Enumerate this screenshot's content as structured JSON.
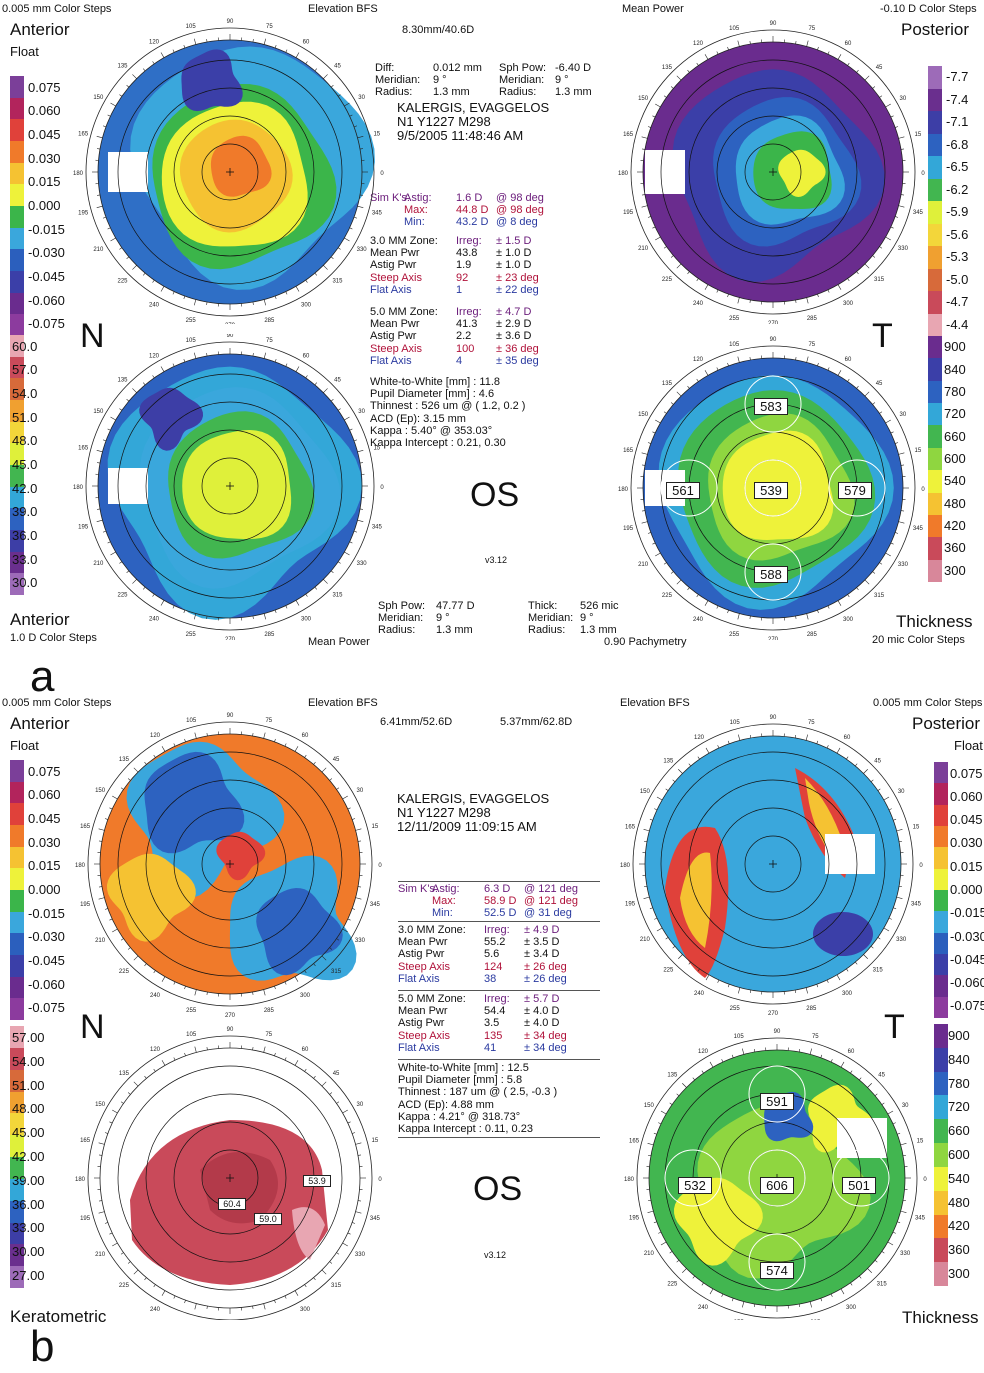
{
  "panel_a": {
    "letter": "a",
    "top_left": {
      "steps": "0.005 mm Color Steps",
      "title": "Anterior",
      "sub": "Float",
      "center": "Elevation BFS"
    },
    "top_center_value": "8.30mm/40.6D",
    "top_right": {
      "center": "Mean Power",
      "steps": "-0.10 D Color Steps",
      "title": "Posterior"
    },
    "bottom_left": {
      "title": "Anterior",
      "steps": "1.0 D Color Steps",
      "center": "Mean Power"
    },
    "bottom_right": {
      "center": "0.90 Pachymetry",
      "title": "Thickness",
      "steps": "20 mic Color Steps"
    },
    "N": "N",
    "T": "T",
    "OS": "OS",
    "version": "v3.12",
    "diff": {
      "l1": [
        "Diff:",
        "0.012 mm",
        "Sph Pow:",
        "-6.40 D"
      ],
      "l2": [
        "Meridian:",
        "9 °",
        "Meridian:",
        "9 °"
      ],
      "l3": [
        "Radius:",
        "1.3 mm",
        "Radius:",
        "1.3 mm"
      ]
    },
    "patient": {
      "name": "KALERGIS, EVAGGELOS",
      "id": "N1 Y1227 M298",
      "date": "9/5/2005 11:48:46 AM"
    },
    "simk": [
      [
        "Sim K's:",
        "Astig:",
        "1.6 D",
        "@ 98 deg"
      ],
      [
        "",
        "Max:",
        "44.8 D",
        "@ 98 deg"
      ],
      [
        "",
        "Min:",
        "43.2 D",
        "@ 8 deg"
      ]
    ],
    "zone3": [
      [
        "3.0 MM Zone:",
        "Irreg:",
        "± 1.5 D"
      ],
      [
        "Mean Pwr",
        "43.8",
        "± 1.0 D"
      ],
      [
        "Astig Pwr",
        "1.9",
        "± 1.0 D"
      ],
      [
        "Steep Axis",
        "92",
        "± 23 deg"
      ],
      [
        "Flat Axis",
        "1",
        "± 22 deg"
      ]
    ],
    "zone5": [
      [
        "5.0 MM Zone:",
        "Irreg:",
        "± 4.7 D"
      ],
      [
        "Mean Pwr",
        "41.3",
        "± 2.9 D"
      ],
      [
        "Astig Pwr",
        "2.2",
        "± 3.6 D"
      ],
      [
        "Steep Axis",
        "100",
        "± 36 deg"
      ],
      [
        "Flat Axis",
        "4",
        "± 35 deg"
      ]
    ],
    "misc": [
      "White-to-White [mm] : 11.8",
      "Pupil Diameter [mm] : 4.6",
      "Thinnest : 526 um @ ( 1.2, 0.2 )",
      "ACD (Ep): 3.15 mm",
      "Kappa : 5.40° @ 353.03°",
      "Kappa Intercept : 0.21, 0.30"
    ],
    "bottom_info": {
      "l1": [
        "Sph Pow:",
        "47.77 D",
        "Thick:",
        "526 mic"
      ],
      "l2": [
        "Meridian:",
        "9 °",
        "Meridian:",
        "9 °"
      ],
      "l3": [
        "Radius:",
        "1.3 mm",
        "Radius:",
        "1.3 mm"
      ]
    },
    "scale_float": [
      "0.075",
      "0.060",
      "0.045",
      "0.030",
      "0.015",
      "0.000",
      "-0.015",
      "-0.030",
      "-0.045",
      "-0.060",
      "-0.075"
    ],
    "scale_power": [
      "60.0",
      "57.0",
      "54.0",
      "51.0",
      "48.0",
      "45.0",
      "42.0",
      "39.0",
      "36.0",
      "33.0",
      "30.0"
    ],
    "scale_post": [
      "-7.7",
      "-7.4",
      "-7.1",
      "-6.8",
      "-6.5",
      "-6.2",
      "-5.9",
      "-5.6",
      "-5.3",
      "-5.0",
      "-4.7",
      "-4.4"
    ],
    "scale_thick": [
      "900",
      "840",
      "780",
      "720",
      "660",
      "600",
      "540",
      "480",
      "420",
      "360",
      "300"
    ],
    "pachy": {
      "top": "583",
      "left": "561",
      "center": "539",
      "right": "579",
      "bottom": "588"
    }
  },
  "panel_b": {
    "letter": "b",
    "top_left": {
      "steps": "0.005 mm Color Steps",
      "title": "Anterior",
      "sub": "Float",
      "center": "Elevation BFS"
    },
    "top_values": [
      "6.41mm/52.6D",
      "5.37mm/62.8D"
    ],
    "top_right": {
      "center": "Elevation BFS",
      "steps": "0.005 mm Color Steps",
      "title": "Posterior",
      "sub": "Float"
    },
    "bottom_left": {
      "title": "Keratometric"
    },
    "bottom_right": {
      "title": "Thickness"
    },
    "N": "N",
    "T": "T",
    "OS": "OS",
    "version": "v3.12",
    "patient": {
      "name": "KALERGIS, EVAGGELOS",
      "id": "N1 Y1227 M298",
      "date": "12/11/2009 11:09:15 AM"
    },
    "simk": [
      [
        "Sim K's:",
        "Astig:",
        "6.3 D",
        "@ 121 deg"
      ],
      [
        "",
        "Max:",
        "58.9 D",
        "@ 121 deg"
      ],
      [
        "",
        "Min:",
        "52.5 D",
        "@ 31 deg"
      ]
    ],
    "zone3": [
      [
        "3.0 MM Zone:",
        "Irreg:",
        "± 4.9 D"
      ],
      [
        "Mean Pwr",
        "55.2",
        "± 3.5 D"
      ],
      [
        "Astig Pwr",
        "5.6",
        "± 3.4 D"
      ],
      [
        "Steep Axis",
        "124",
        "± 26 deg"
      ],
      [
        "Flat Axis",
        "38",
        "± 26 deg"
      ]
    ],
    "zone5": [
      [
        "5.0 MM Zone:",
        "Irreg:",
        "± 5.7 D"
      ],
      [
        "Mean Pwr",
        "54.4",
        "± 4.0 D"
      ],
      [
        "Astig Pwr",
        "3.5",
        "± 4.0 D"
      ],
      [
        "Steep Axis",
        "135",
        "± 34 deg"
      ],
      [
        "Flat Axis",
        "41",
        "± 34 deg"
      ]
    ],
    "misc": [
      "White-to-White [mm] : 12.5",
      "Pupil Diameter [mm] : 5.8",
      "Thinnest : 187 um @ ( 2.5, -0.3 )",
      "ACD (Ep): 4.88 mm",
      "Kappa : 4.21° @ 318.73°",
      "Kappa Intercept : 0.11, 0.23"
    ],
    "scale_float": [
      "0.075",
      "0.060",
      "0.045",
      "0.030",
      "0.015",
      "0.000",
      "-0.015",
      "-0.030",
      "-0.045",
      "-0.060",
      "-0.075"
    ],
    "scale_power": [
      "57.00",
      "54.00",
      "51.00",
      "48.00",
      "45.00",
      "42.00",
      "39.00",
      "36.00",
      "33.00",
      "30.00",
      "27.00"
    ],
    "scale_post": [
      "0.075",
      "0.060",
      "0.045",
      "0.030",
      "0.015",
      "0.000",
      "-0.015",
      "-0.030",
      "-0.045",
      "-0.060",
      "-0.075"
    ],
    "scale_thick": [
      "900",
      "840",
      "780",
      "720",
      "660",
      "600",
      "540",
      "480",
      "420",
      "360",
      "300"
    ],
    "pachy": {
      "top": "591",
      "left": "532",
      "center": "606",
      "right": "501",
      "bottom": "574"
    },
    "kerato_labels": [
      "60.4",
      "59.0",
      "53.9"
    ]
  },
  "colors": {
    "float_scale": [
      "#7b3f99",
      "#b2245c",
      "#e0413a",
      "#f07a2a",
      "#f5c232",
      "#eef23a",
      "#3bb54a",
      "#3aa7dc",
      "#2b5fbd",
      "#3b3fa8",
      "#6a2c8e",
      "#8c3b9e"
    ],
    "power_scale": [
      "#e8a6b2",
      "#c94a5a",
      "#d76a3a",
      "#f0a030",
      "#f3d63a",
      "#dff03a",
      "#42b650",
      "#33a7d8",
      "#2d62c0",
      "#3d3ea6",
      "#6a2f8e",
      "#9d6bb8"
    ],
    "thick_scale": [
      "#6a2c8e",
      "#3b3fa8",
      "#2d62c0",
      "#33a7d8",
      "#42b650",
      "#8fd640",
      "#eef23a",
      "#f5c232",
      "#f07a2a",
      "#c94a5a",
      "#d8879a"
    ]
  }
}
